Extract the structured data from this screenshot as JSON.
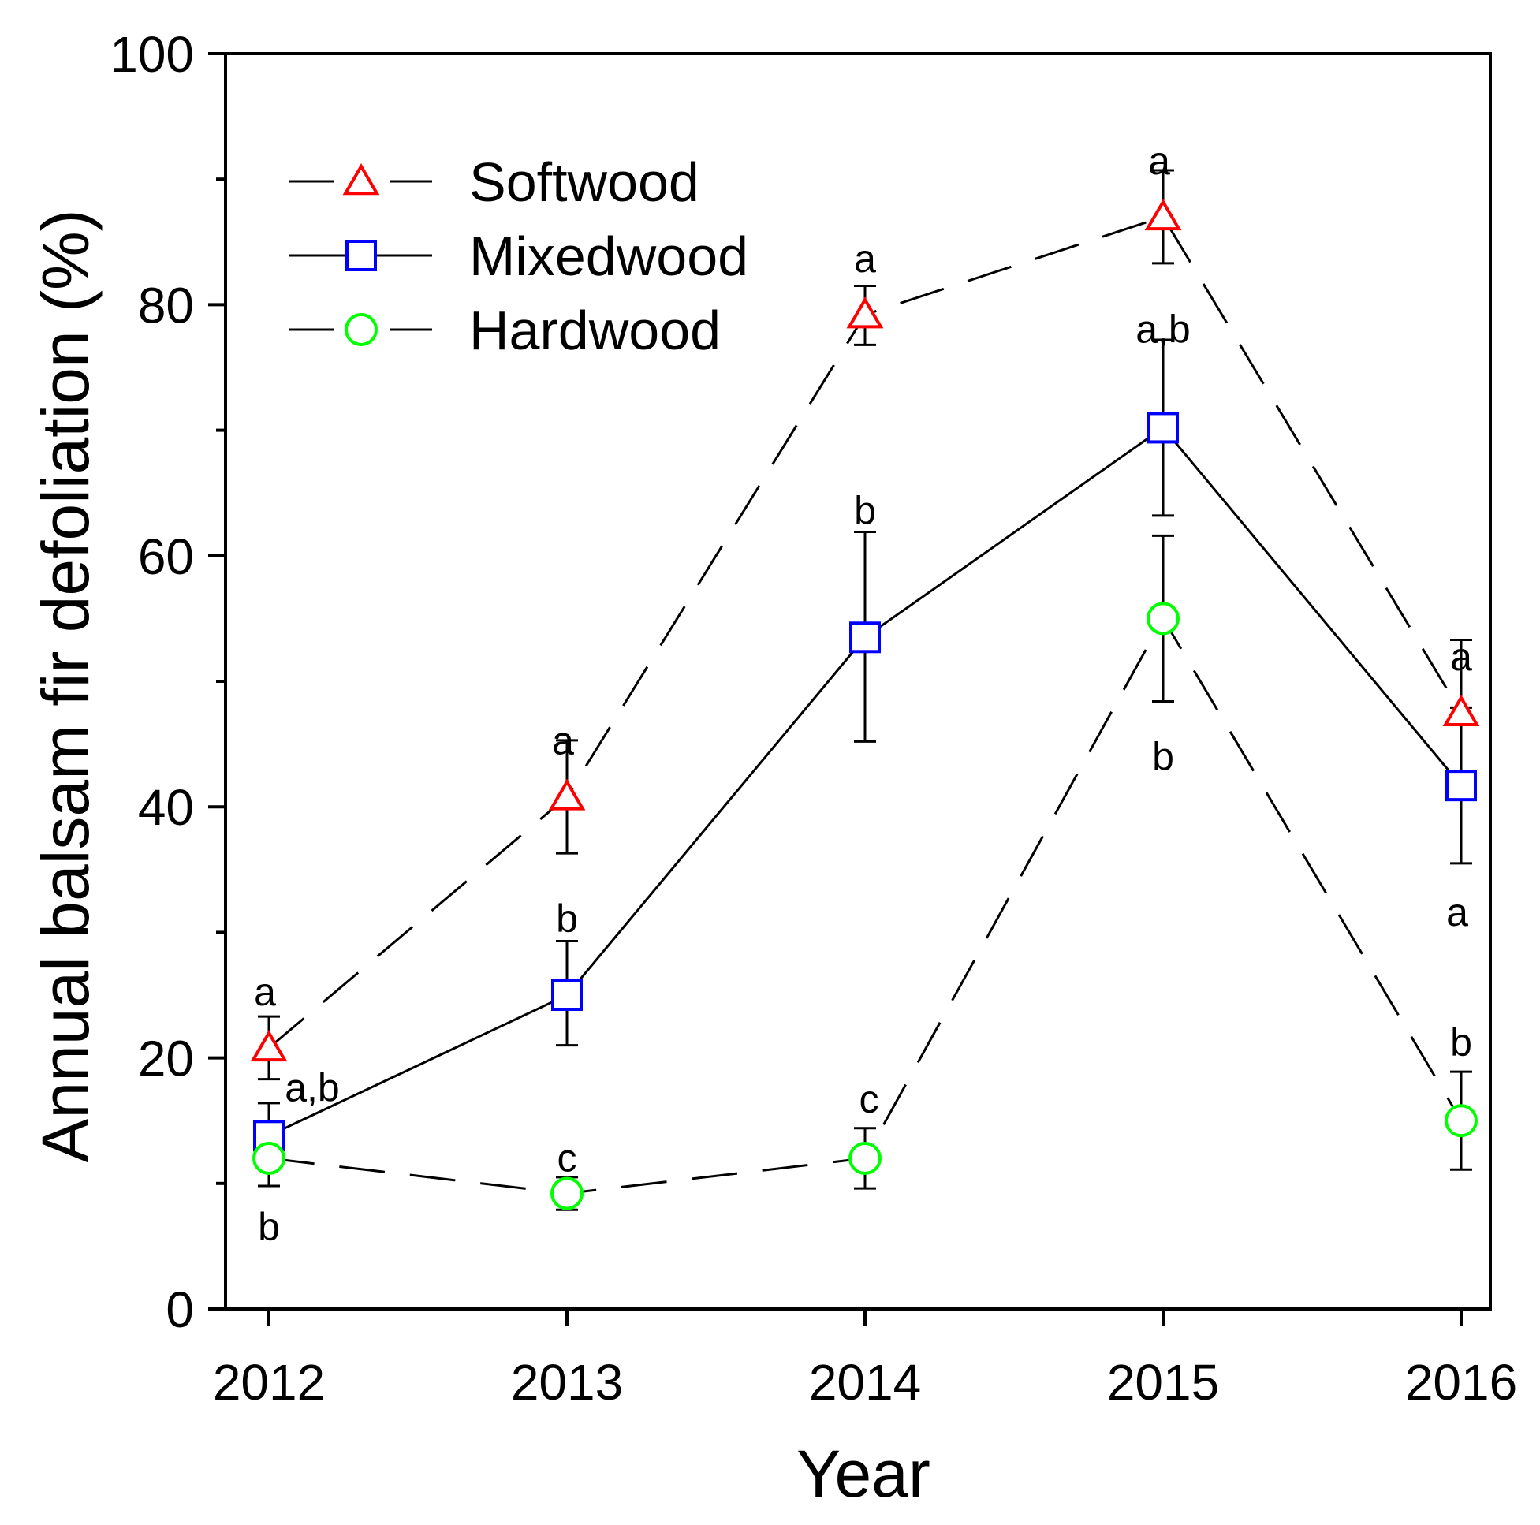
{
  "chart_data": {
    "type": "line",
    "xlabel": "Year",
    "ylabel": "Annual balsam fir defoliation (%)",
    "categories": [
      "2012",
      "2013",
      "2014",
      "2015",
      "2016"
    ],
    "ylim": [
      0,
      100
    ],
    "yticks": [
      0,
      20,
      40,
      60,
      80,
      100
    ],
    "yticks_labels": [
      "0",
      "20",
      "40",
      "60",
      "80",
      "100"
    ],
    "minor_yticks": [
      10,
      30,
      50,
      70,
      90
    ],
    "legend_position": "top-left",
    "grid": false,
    "series": [
      {
        "name": "Softwood",
        "marker": "triangle",
        "line": "dashed",
        "marker_color": "#ff0000",
        "values": [
          20.8,
          40.8,
          79.2,
          87.0,
          47.5
        ],
        "error_low": [
          18.3,
          36.3,
          76.8,
          83.3,
          41.7
        ],
        "error_high": [
          23.3,
          45.3,
          81.5,
          90.7,
          53.3
        ],
        "sig_labels": [
          "a",
          "a",
          "a",
          "a",
          "a"
        ]
      },
      {
        "name": "Mixedwood",
        "marker": "square",
        "line": "solid",
        "marker_color": "#0000ff",
        "values": [
          13.8,
          25.0,
          53.5,
          70.2,
          41.7
        ],
        "error_low": [
          11.2,
          21.0,
          45.2,
          63.2,
          35.5
        ],
        "error_high": [
          16.4,
          29.3,
          61.9,
          77.2,
          47.9
        ],
        "sig_labels": [
          "a,b",
          "b",
          "b",
          "a,b",
          "a"
        ]
      },
      {
        "name": "Hardwood",
        "marker": "circle",
        "line": "dashed",
        "marker_color": "#00ff00",
        "values": [
          12.0,
          9.2,
          12.0,
          55.0,
          15.0
        ],
        "error_low": [
          9.8,
          7.9,
          9.6,
          48.4,
          11.1
        ],
        "error_high": [
          14.2,
          10.5,
          14.4,
          61.6,
          18.9
        ],
        "sig_labels": [
          "b",
          "c",
          "c",
          "b",
          "b"
        ]
      }
    ]
  }
}
